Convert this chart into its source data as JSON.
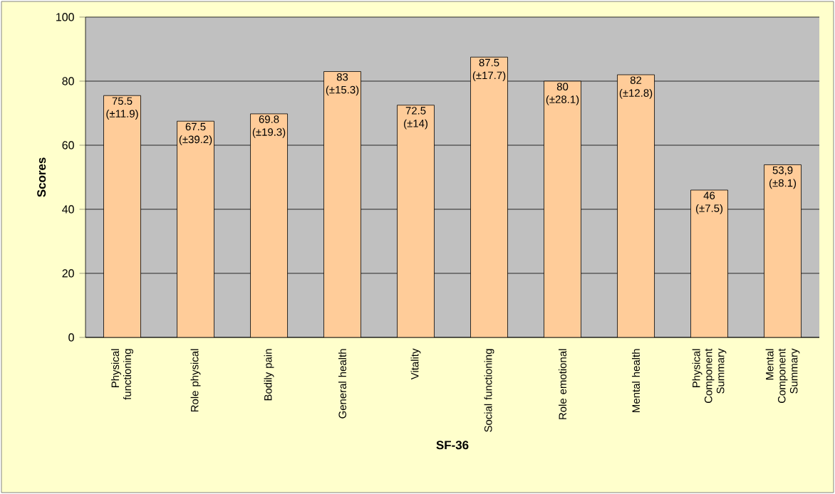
{
  "chart_data": {
    "type": "bar",
    "xlabel": "SF-36",
    "ylabel": "Scores",
    "categories": [
      "Physical functioning",
      "Role physical",
      "Bodily pain",
      "General health",
      "Vitality",
      "Social functioning",
      "Role emotional",
      "Mental health",
      "Physical Component Summary",
      "Mental Component Summary"
    ],
    "values": [
      75.5,
      67.5,
      69.8,
      83,
      72.5,
      87.5,
      80,
      82,
      46,
      53.9
    ],
    "value_labels": [
      "75.5 (±11.9)",
      "67.5 (±39.2)",
      "69.8 (±19.3)",
      "83 (±15.3)",
      "72.5 (±14)",
      "87.5 (±17.7)",
      "80 (±28.1)",
      "82 (±12.8)",
      "46 (±7.5)",
      "53,9 (±8.1)"
    ],
    "color": "#ffcc99",
    "ylim": [
      0,
      100
    ],
    "yticks": [
      0,
      20,
      40,
      60,
      80,
      100
    ],
    "grid": "y"
  }
}
